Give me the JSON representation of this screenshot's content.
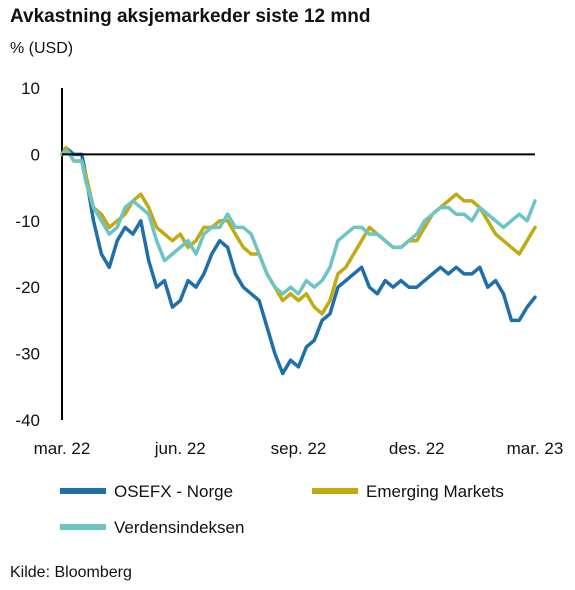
{
  "title": "Avkastning aksjemarkeder siste 12 mnd",
  "unit_label": "% (USD)",
  "source": "Kilde: Bloomberg",
  "colors": {
    "osefx": "#1f6fa8",
    "em": "#c2aa12",
    "world": "#6cc4c4",
    "axis": "#000000"
  },
  "chart_data": {
    "type": "line",
    "title": "Avkastning aksjemarkeder siste 12 mnd",
    "ylabel": "% (USD)",
    "xlabel": "",
    "ylim": [
      -40,
      10
    ],
    "yticks": [
      10,
      0,
      -10,
      -20,
      -30,
      -40
    ],
    "xlim": [
      0,
      12
    ],
    "xtick_positions": [
      0,
      3,
      6,
      9,
      12
    ],
    "xtick_labels": [
      "mar. 22",
      "jun. 22",
      "sep. 22",
      "des. 22",
      "mar. 23"
    ],
    "zero_line": true,
    "legend_position": "bottom",
    "x": [
      0,
      0.1,
      0.2,
      0.3,
      0.5,
      0.6,
      0.8,
      1.0,
      1.2,
      1.4,
      1.6,
      1.8,
      2.0,
      2.2,
      2.4,
      2.6,
      2.8,
      3.0,
      3.2,
      3.4,
      3.6,
      3.8,
      4.0,
      4.2,
      4.4,
      4.6,
      4.8,
      5.0,
      5.2,
      5.4,
      5.6,
      5.8,
      6.0,
      6.2,
      6.4,
      6.6,
      6.8,
      7.0,
      7.2,
      7.4,
      7.6,
      7.8,
      8.0,
      8.2,
      8.4,
      8.6,
      8.8,
      9.0,
      9.2,
      9.4,
      9.6,
      9.8,
      10.0,
      10.2,
      10.4,
      10.6,
      10.8,
      11.0,
      11.2,
      11.4,
      11.6,
      11.8,
      12.0
    ],
    "series": [
      {
        "name": "OSEFX - Norge",
        "color": "#1f6fa8",
        "values": [
          0,
          1,
          0.5,
          0,
          0,
          -3,
          -10,
          -15,
          -17,
          -13,
          -11,
          -12,
          -10,
          -16,
          -20,
          -19,
          -23,
          -22,
          -19,
          -20,
          -18,
          -15,
          -13,
          -14,
          -18,
          -20,
          -21,
          -22,
          -26,
          -30,
          -33,
          -31,
          -32,
          -29,
          -28,
          -25,
          -24,
          -20,
          -19,
          -18,
          -17,
          -20,
          -21,
          -19,
          -20,
          -19,
          -20,
          -20,
          -19,
          -18,
          -17,
          -18,
          -17,
          -18,
          -18,
          -17,
          -20,
          -19,
          -21,
          -25,
          -25,
          -23,
          -21.5
        ]
      },
      {
        "name": "Emerging Markets",
        "color": "#c2aa12",
        "values": [
          0,
          1,
          0,
          -1,
          -1,
          -3,
          -8,
          -9,
          -11,
          -10,
          -9,
          -7,
          -6,
          -8,
          -11,
          -12,
          -13,
          -12,
          -14,
          -13,
          -11,
          -11,
          -10,
          -10,
          -12,
          -14,
          -15,
          -15,
          -18,
          -20,
          -22,
          -21,
          -22,
          -21,
          -23,
          -24,
          -22,
          -18,
          -17,
          -15,
          -13,
          -11,
          -12,
          -13,
          -14,
          -14,
          -13,
          -13,
          -11,
          -9,
          -8,
          -7,
          -6,
          -7,
          -7,
          -8,
          -10,
          -12,
          -13,
          -14,
          -15,
          -13,
          -11
        ]
      },
      {
        "name": "Verdensindeksen",
        "color": "#6cc4c4",
        "values": [
          0,
          0.5,
          0,
          -1,
          -1,
          -4,
          -8,
          -10,
          -12,
          -11,
          -8,
          -7,
          -8,
          -9,
          -13,
          -16,
          -15,
          -14,
          -13,
          -15,
          -12,
          -11,
          -11,
          -9,
          -11,
          -11,
          -12,
          -15,
          -18,
          -20,
          -21,
          -20,
          -21,
          -19,
          -20,
          -19,
          -17,
          -13,
          -12,
          -11,
          -11,
          -12,
          -12,
          -13,
          -14,
          -14,
          -13,
          -12,
          -10,
          -9,
          -8,
          -8,
          -9,
          -9,
          -10,
          -8,
          -9,
          -10,
          -11,
          -10,
          -9,
          -10,
          -7
        ]
      }
    ]
  }
}
